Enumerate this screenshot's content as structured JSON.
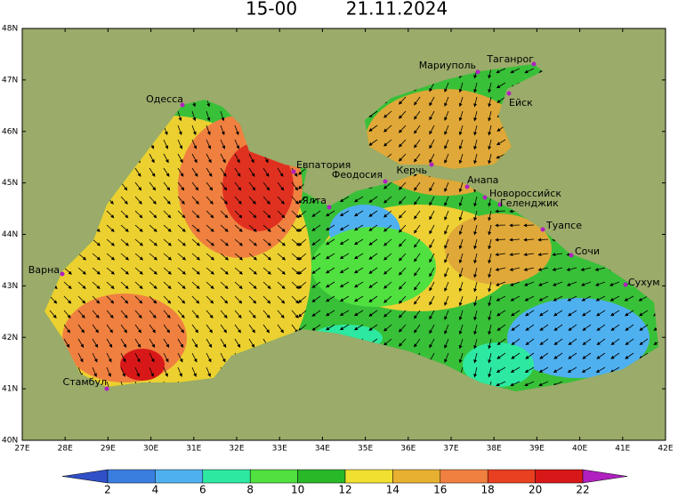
{
  "title": {
    "time": "15-00",
    "date": "21.11.2024"
  },
  "lat_ticks": [
    "48N",
    "47N",
    "46N",
    "45N",
    "44N",
    "43N",
    "42N",
    "41N",
    "40N"
  ],
  "lon_ticks": [
    "27E",
    "28E",
    "29E",
    "30E",
    "31E",
    "32E",
    "33E",
    "34E",
    "35E",
    "36E",
    "37E",
    "38E",
    "39E",
    "40E",
    "41E",
    "42E"
  ],
  "cities": [
    "Одесса",
    "Мариуполь",
    "Таганрог",
    "Ейск",
    "Евпатория",
    "Феодосия",
    "Керчь",
    "Анапа",
    "Новороссийск",
    "Геленджик",
    "Ялта",
    "Туапсе",
    "Сочи",
    "Сухум",
    "Варна",
    "Стамбул"
  ],
  "colorbar": [
    2,
    4,
    6,
    8,
    10,
    12,
    14,
    16,
    18,
    20,
    22
  ]
}
